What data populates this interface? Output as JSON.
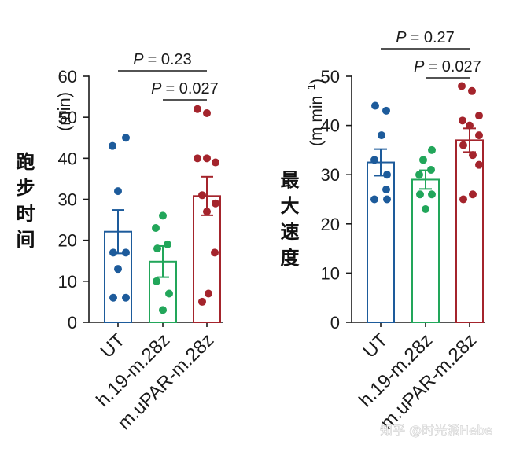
{
  "chart_data": [
    {
      "type": "bar",
      "ylabel": "跑步时间",
      "yunit": "(min)",
      "categories": [
        "UT",
        "h.19-m.28z",
        "m.uPAR-m.28z"
      ],
      "values": [
        22.1,
        14.8,
        30.8
      ],
      "sem": [
        5.3,
        3.8,
        4.7
      ],
      "points": [
        [
          45,
          43,
          32,
          17,
          17,
          13,
          6,
          6
        ],
        [
          26,
          23,
          19,
          18,
          10,
          7,
          3
        ],
        [
          52,
          51,
          40,
          40,
          39,
          31,
          29,
          27,
          17,
          7,
          5
        ]
      ],
      "colors": [
        "#1d5b9b",
        "#22a65a",
        "#a4242c"
      ],
      "ylim": [
        0,
        60
      ],
      "yticks": [
        0,
        10,
        20,
        30,
        40,
        50,
        60
      ],
      "comparisons": [
        {
          "between": [
            0,
            2
          ],
          "symbol": "P",
          "value": "= 0.23"
        },
        {
          "between": [
            1,
            2
          ],
          "symbol": "P",
          "value": "= 0.027"
        }
      ]
    },
    {
      "type": "bar",
      "ylabel": "最大速度",
      "yunit": {
        "main": "(m min",
        "sup": "−1",
        "close": ")"
      },
      "categories": [
        "UT",
        "h.19-m.28z",
        "m.uPAR-m.28z"
      ],
      "values": [
        32.5,
        29.0,
        37.0
      ],
      "sem": [
        2.7,
        1.9,
        2.4
      ],
      "points": [
        [
          44,
          43,
          38,
          33,
          30,
          27,
          25,
          25
        ],
        [
          35,
          33,
          31,
          30,
          26,
          26,
          23
        ],
        [
          48,
          47,
          42,
          41,
          40,
          38,
          36,
          34,
          32,
          26,
          25
        ]
      ],
      "colors": [
        "#1d5b9b",
        "#22a65a",
        "#a4242c"
      ],
      "ylim": [
        0,
        50
      ],
      "yticks": [
        0,
        10,
        20,
        30,
        40,
        50
      ],
      "comparisons": [
        {
          "between": [
            0,
            2
          ],
          "symbol": "P",
          "value": "= 0.27"
        },
        {
          "between": [
            1,
            2
          ],
          "symbol": "P",
          "value": "= 0.027"
        }
      ]
    }
  ],
  "watermark": "知乎 @时光派Hebe"
}
